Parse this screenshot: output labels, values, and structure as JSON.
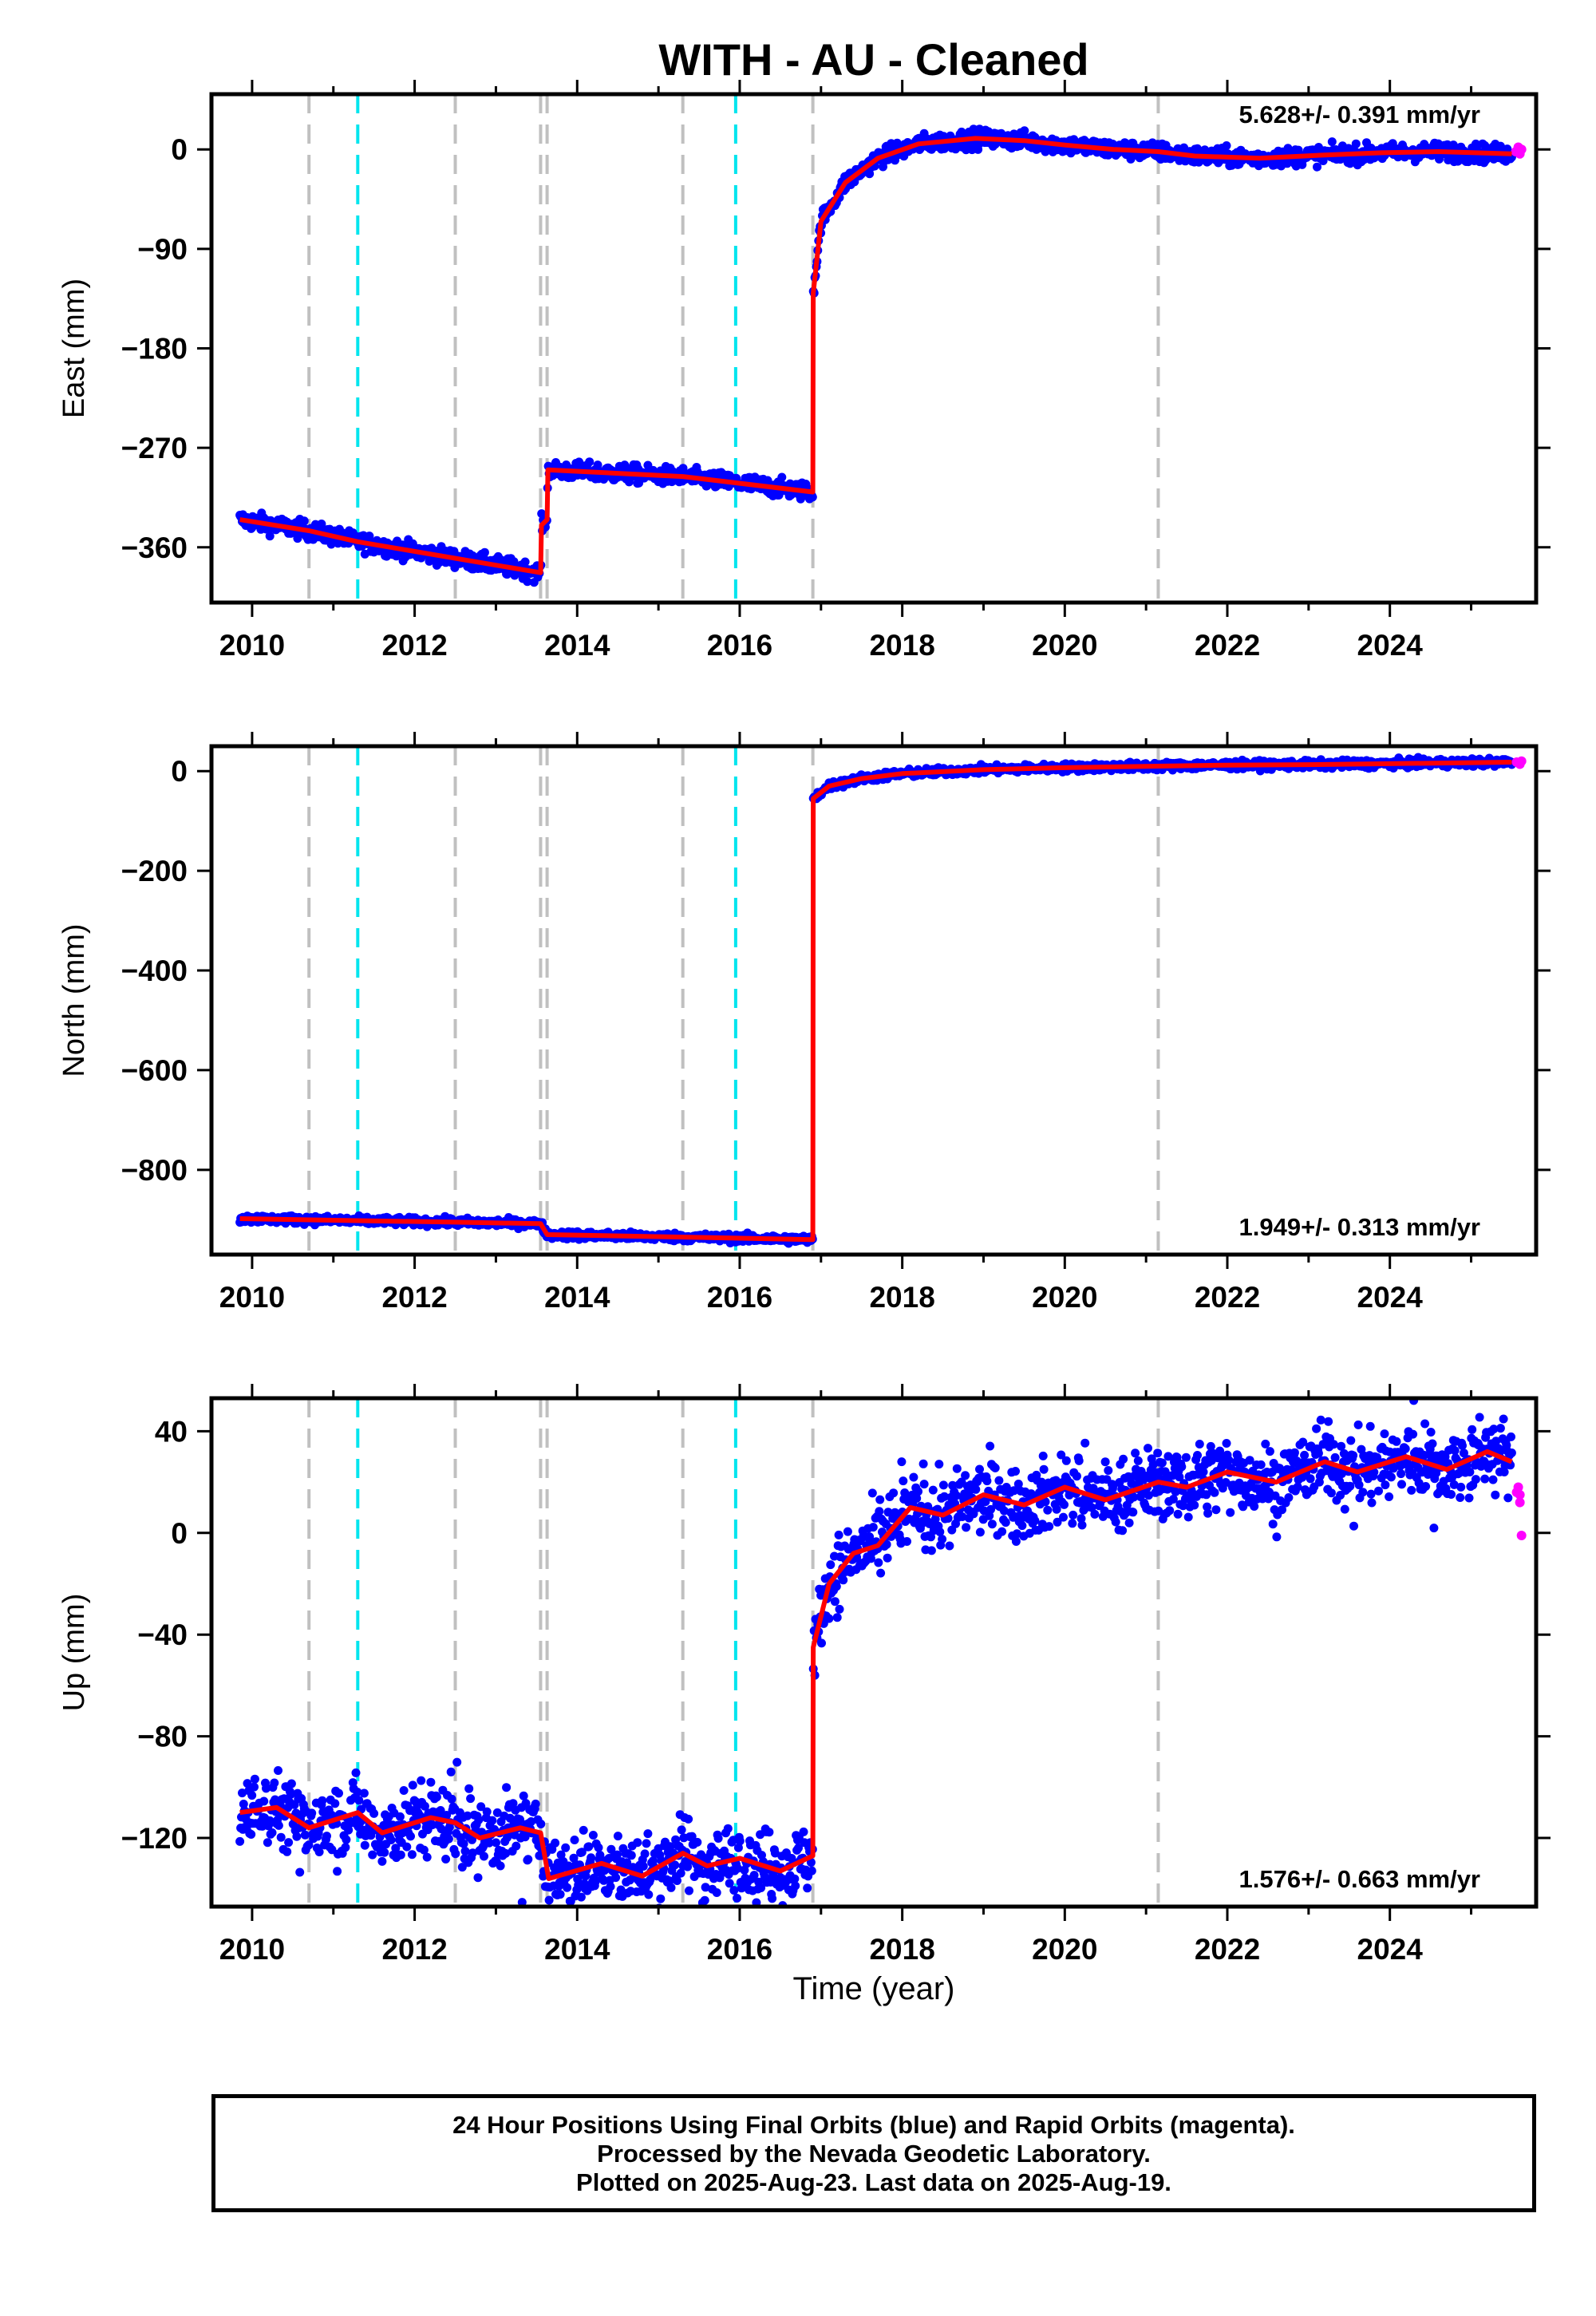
{
  "title": "WITH  - AU - Cleaned",
  "xlabel": "Time (year)",
  "footer": {
    "line1": "24 Hour Positions Using Final Orbits (blue) and Rapid Orbits (magenta).",
    "line2": "Processed by the Nevada Geodetic Laboratory.",
    "line3": "Plotted on 2025-Aug-23. Last data on 2025-Aug-19."
  },
  "colors": {
    "final_orbits": "#0000ff",
    "rapid_orbits": "#ff00ff",
    "model": "#ff0000",
    "antenna_change": "#c0c0c0",
    "earthquake": "#00e5ee"
  },
  "chart_data": [
    {
      "type": "scatter",
      "ylabel": "East (mm)",
      "rate": "5.628+/- 0.391 mm/yr",
      "xlim": [
        2009.5,
        2025.8
      ],
      "ylim": [
        -410,
        50
      ],
      "xticks": [
        2010,
        2012,
        2014,
        2016,
        2018,
        2020,
        2022,
        2024
      ],
      "yticks": [
        0,
        -90,
        -180,
        -270,
        -360
      ],
      "ytick_labels": [
        "0",
        "−90",
        "−180",
        "−270",
        "−360"
      ],
      "grey_lines": [
        2010.7,
        2012.5,
        2013.55,
        2013.63,
        2015.3,
        2016.9,
        2021.15
      ],
      "cyan_lines": [
        2011.3,
        2015.95
      ],
      "noise": 4,
      "model": [
        [
          2009.85,
          -335
        ],
        [
          2010.7,
          -345
        ],
        [
          2011.3,
          -355
        ],
        [
          2012.5,
          -370
        ],
        [
          2013.55,
          -383
        ],
        [
          2013.56,
          -340
        ],
        [
          2013.63,
          -335
        ],
        [
          2013.64,
          -290
        ],
        [
          2015.3,
          -296
        ],
        [
          2016.9,
          -310
        ],
        [
          2016.905,
          -130
        ],
        [
          2017.0,
          -65
        ],
        [
          2017.3,
          -30
        ],
        [
          2017.7,
          -8
        ],
        [
          2018.2,
          5
        ],
        [
          2018.9,
          10
        ],
        [
          2019.5,
          8
        ],
        [
          2020.0,
          4
        ],
        [
          2020.6,
          0
        ],
        [
          2021.15,
          -2
        ],
        [
          2021.6,
          -6
        ],
        [
          2022.4,
          -8
        ],
        [
          2023.2,
          -5
        ],
        [
          2023.9,
          -3
        ],
        [
          2024.6,
          -2
        ],
        [
          2025.5,
          -4
        ]
      ],
      "rapid": [
        [
          2025.55,
          -2
        ],
        [
          2025.58,
          2
        ],
        [
          2025.6,
          -4
        ],
        [
          2025.62,
          0
        ]
      ]
    },
    {
      "type": "scatter",
      "ylabel": "North (mm)",
      "rate": "1.949+/- 0.313 mm/yr",
      "xlim": [
        2009.5,
        2025.8
      ],
      "ylim": [
        -970,
        50
      ],
      "xticks": [
        2010,
        2012,
        2014,
        2016,
        2018,
        2020,
        2022,
        2024
      ],
      "yticks": [
        0,
        -200,
        -400,
        -600,
        -800
      ],
      "ytick_labels": [
        "0",
        "−200",
        "−400",
        "−600",
        "−800"
      ],
      "grey_lines": [
        2010.7,
        2012.5,
        2013.55,
        2013.63,
        2015.3,
        2016.9,
        2021.15
      ],
      "cyan_lines": [
        2011.3,
        2015.95
      ],
      "noise": 4,
      "model": [
        [
          2009.85,
          -898
        ],
        [
          2011.3,
          -902
        ],
        [
          2012.5,
          -905
        ],
        [
          2013.55,
          -908
        ],
        [
          2013.63,
          -930
        ],
        [
          2015.3,
          -935
        ],
        [
          2016.9,
          -940
        ],
        [
          2016.905,
          -55
        ],
        [
          2017.1,
          -30
        ],
        [
          2017.5,
          -15
        ],
        [
          2018.0,
          -5
        ],
        [
          2019.0,
          3
        ],
        [
          2020.0,
          7
        ],
        [
          2021.15,
          10
        ],
        [
          2022.0,
          12
        ],
        [
          2023.0,
          13
        ],
        [
          2024.0,
          15
        ],
        [
          2025.5,
          18
        ]
      ],
      "rapid": [
        [
          2025.56,
          18
        ],
        [
          2025.6,
          14
        ],
        [
          2025.62,
          20
        ]
      ]
    },
    {
      "type": "scatter",
      "ylabel": "Up (mm)",
      "rate": "1.576+/- 0.663 mm/yr",
      "xlim": [
        2009.5,
        2025.8
      ],
      "ylim": [
        -147,
        53
      ],
      "xticks": [
        2010,
        2012,
        2014,
        2016,
        2018,
        2020,
        2022,
        2024
      ],
      "yticks": [
        40,
        0,
        -40,
        -80,
        -120
      ],
      "ytick_labels": [
        "40",
        "0",
        "−40",
        "−80",
        "−120"
      ],
      "grey_lines": [
        2010.7,
        2012.5,
        2013.55,
        2013.63,
        2015.3,
        2016.9,
        2021.15
      ],
      "cyan_lines": [
        2011.3,
        2015.95
      ],
      "noise": 7,
      "model": [
        [
          2009.85,
          -110
        ],
        [
          2010.3,
          -108
        ],
        [
          2010.7,
          -116
        ],
        [
          2011.3,
          -110
        ],
        [
          2011.6,
          -118
        ],
        [
          2012.2,
          -112
        ],
        [
          2012.5,
          -114
        ],
        [
          2012.8,
          -120
        ],
        [
          2013.3,
          -116
        ],
        [
          2013.55,
          -118
        ],
        [
          2013.65,
          -136
        ],
        [
          2014.3,
          -130
        ],
        [
          2014.8,
          -135
        ],
        [
          2015.3,
          -126
        ],
        [
          2015.6,
          -131
        ],
        [
          2016.0,
          -128
        ],
        [
          2016.5,
          -133
        ],
        [
          2016.9,
          -127
        ],
        [
          2016.905,
          -45
        ],
        [
          2017.1,
          -20
        ],
        [
          2017.4,
          -8
        ],
        [
          2017.7,
          -5
        ],
        [
          2018.1,
          10
        ],
        [
          2018.5,
          7
        ],
        [
          2019.0,
          15
        ],
        [
          2019.5,
          11
        ],
        [
          2020.0,
          18
        ],
        [
          2020.5,
          13
        ],
        [
          2021.15,
          20
        ],
        [
          2021.5,
          18
        ],
        [
          2022.0,
          24
        ],
        [
          2022.6,
          20
        ],
        [
          2023.2,
          28
        ],
        [
          2023.6,
          24
        ],
        [
          2024.2,
          30
        ],
        [
          2024.7,
          25
        ],
        [
          2025.2,
          32
        ],
        [
          2025.5,
          28
        ]
      ],
      "rapid": [
        [
          2025.56,
          16
        ],
        [
          2025.58,
          18
        ],
        [
          2025.6,
          12
        ],
        [
          2025.62,
          -1
        ],
        [
          2025.6,
          15
        ]
      ]
    }
  ]
}
